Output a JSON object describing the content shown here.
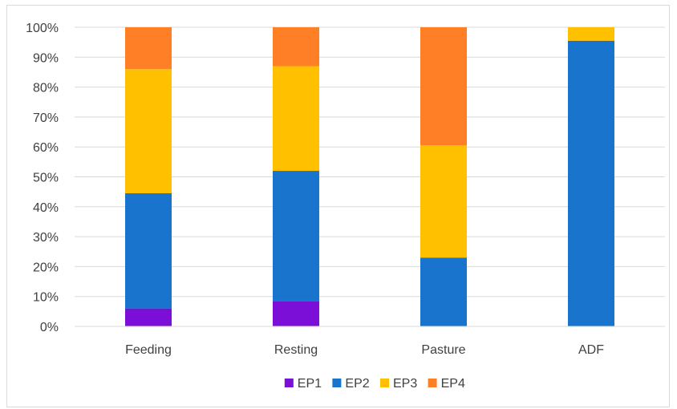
{
  "chart_data": {
    "type": "bar",
    "stacked": true,
    "percent": true,
    "categories": [
      "Feeding",
      "Resting",
      "Pasture",
      "ADF"
    ],
    "series": [
      {
        "name": "EP1",
        "color": "#7b0fd8",
        "values": [
          6,
          8.5,
          0,
          0
        ]
      },
      {
        "name": "EP2",
        "color": "#1874cd",
        "values": [
          38.5,
          43.5,
          23,
          95.5
        ]
      },
      {
        "name": "EP3",
        "color": "#ffc000",
        "values": [
          41.5,
          35,
          37.5,
          4.5
        ]
      },
      {
        "name": "EP4",
        "color": "#ff7f27",
        "values": [
          14,
          13,
          39.5,
          0
        ]
      }
    ],
    "ylim": [
      0,
      100
    ],
    "yticks": [
      "0%",
      "10%",
      "20%",
      "30%",
      "40%",
      "50%",
      "60%",
      "70%",
      "80%",
      "90%",
      "100%"
    ],
    "grid": true,
    "legend_position": "bottom"
  }
}
